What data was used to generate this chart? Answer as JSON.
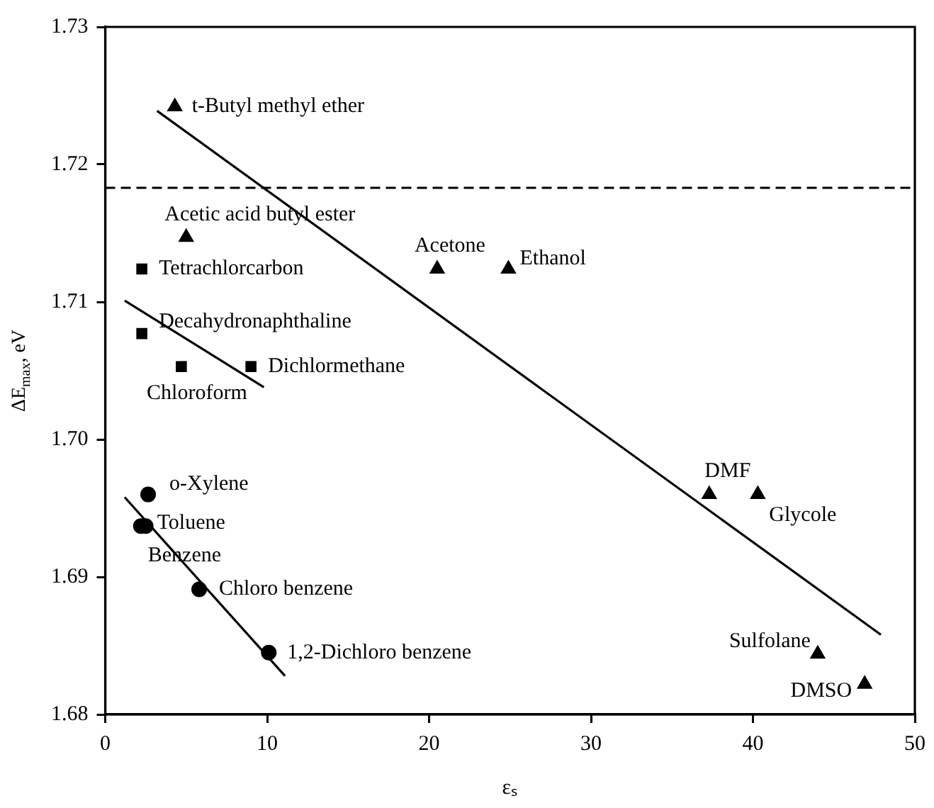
{
  "chart_data": {
    "type": "scatter",
    "xlabel": "εₛ",
    "ylabel": "ΔE$_{max}$, eV",
    "xlim": [
      0,
      50
    ],
    "xticks": [
      0,
      10,
      20,
      30,
      40,
      50
    ],
    "ylim": [
      1.68,
      1.73
    ],
    "yticks": [
      {
        "value": 1.68,
        "label": "1.68"
      },
      {
        "value": 1.69,
        "label": "1.69"
      },
      {
        "value": 1.7,
        "label": "1.70"
      },
      {
        "value": 1.71,
        "label": "1.71"
      },
      {
        "value": 1.72,
        "label": "1.72"
      },
      {
        "value": 1.73,
        "label": "1.73"
      }
    ],
    "legend": false,
    "series": [
      {
        "type": "scatter",
        "marker": "triangle",
        "color": "#000000",
        "x": [
          4.3,
          5.0,
          20.5,
          24.9,
          37.3,
          40.3,
          44.0,
          46.9
        ],
        "values": [
          1.7242,
          1.7147,
          1.7124,
          1.7124,
          1.696,
          1.696,
          1.6844,
          1.6822
        ]
      },
      {
        "type": "scatter",
        "marker": "square",
        "color": "#000000",
        "x": [
          2.26,
          2.26,
          4.7,
          9.0
        ],
        "values": [
          1.7124,
          1.7077,
          1.7053,
          1.7053
        ]
      },
      {
        "type": "scatter",
        "marker": "circle",
        "color": "#000000",
        "x": [
          2.65,
          2.5,
          2.2,
          5.8,
          10.1
        ],
        "values": [
          1.696,
          1.6937,
          1.6937,
          1.6891,
          1.6845
        ]
      },
      {
        "type": "line",
        "marker": "none",
        "line_style": "solid",
        "color": "#000000",
        "x": [
          3.2,
          47.9
        ],
        "values": [
          1.7239,
          1.6858
        ]
      },
      {
        "type": "line",
        "marker": "none",
        "line_style": "solid",
        "color": "#000000",
        "x": [
          1.2,
          9.8
        ],
        "values": [
          1.7101,
          1.7038
        ]
      },
      {
        "type": "line",
        "marker": "none",
        "line_style": "solid",
        "color": "#000000",
        "x": [
          1.2,
          11.1
        ],
        "values": [
          1.6958,
          1.6828
        ]
      }
    ],
    "ref_lines": [
      {
        "axis": "y",
        "value": 1.7183,
        "color": "#000000",
        "line_style": "dashed"
      }
    ],
    "annotations": [
      {
        "text": "t-Butyl methyl ether",
        "x": 4.3,
        "y": 1.7242
      },
      {
        "text": "Acetic acid butyl ester",
        "x": 5.0,
        "y": 1.7147
      },
      {
        "text": "Tetrachlorcarbon",
        "x": 2.26,
        "y": 1.7124
      },
      {
        "text": "Decahydronaphthaline",
        "x": 2.26,
        "y": 1.7077
      },
      {
        "text": "Chloroform",
        "x": 4.7,
        "y": 1.7053
      },
      {
        "text": "Dichlormethane",
        "x": 9.0,
        "y": 1.7053
      },
      {
        "text": "Acetone",
        "x": 20.5,
        "y": 1.7124
      },
      {
        "text": "Ethanol",
        "x": 24.9,
        "y": 1.7124
      },
      {
        "text": "DMF",
        "x": 37.3,
        "y": 1.696
      },
      {
        "text": "Glycole",
        "x": 40.3,
        "y": 1.696
      },
      {
        "text": "Sulfolane",
        "x": 44.0,
        "y": 1.6844
      },
      {
        "text": "DMSO",
        "x": 46.9,
        "y": 1.6822
      },
      {
        "text": "o-Xylene",
        "x": 2.65,
        "y": 1.696
      },
      {
        "text": "Toluene",
        "x": 2.5,
        "y": 1.6937
      },
      {
        "text": "Benzene",
        "x": 2.2,
        "y": 1.6937
      },
      {
        "text": "Chloro benzene",
        "x": 5.8,
        "y": 1.6891
      },
      {
        "text": "1,2-Dichloro benzene",
        "x": 10.1,
        "y": 1.6845
      }
    ]
  }
}
